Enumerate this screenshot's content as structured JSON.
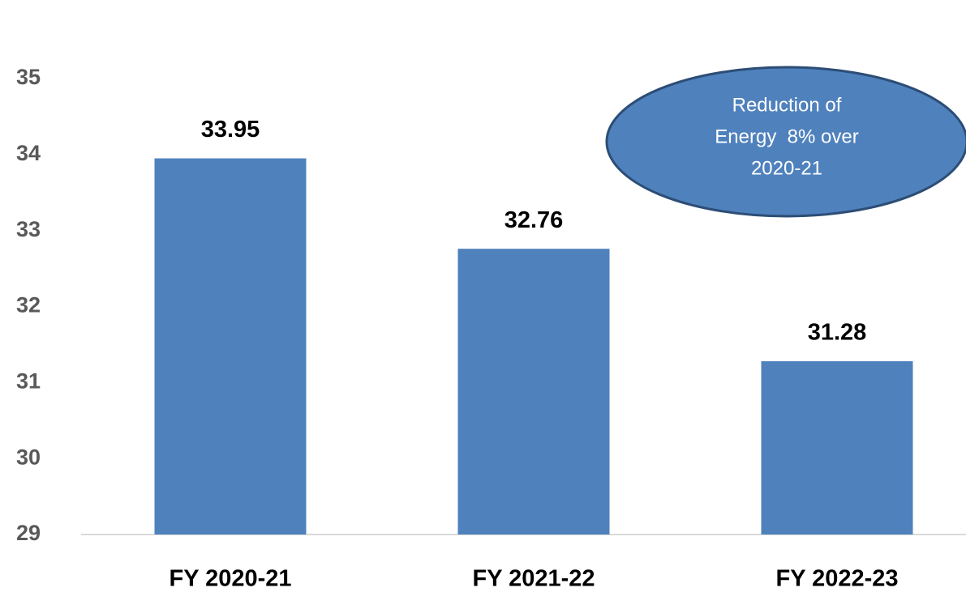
{
  "chart_data": {
    "type": "bar",
    "categories": [
      "FY 2020-21",
      "FY 2021-22",
      "FY 2022-23"
    ],
    "values": [
      33.95,
      32.76,
      31.28
    ],
    "color": "#4f81bd",
    "ylim": [
      29,
      35
    ],
    "yticks": [
      29,
      30,
      31,
      32,
      33,
      34,
      35
    ],
    "grid": false,
    "annotation": [
      "Reduction of",
      "Energy  8% over",
      "2020-21"
    ]
  }
}
